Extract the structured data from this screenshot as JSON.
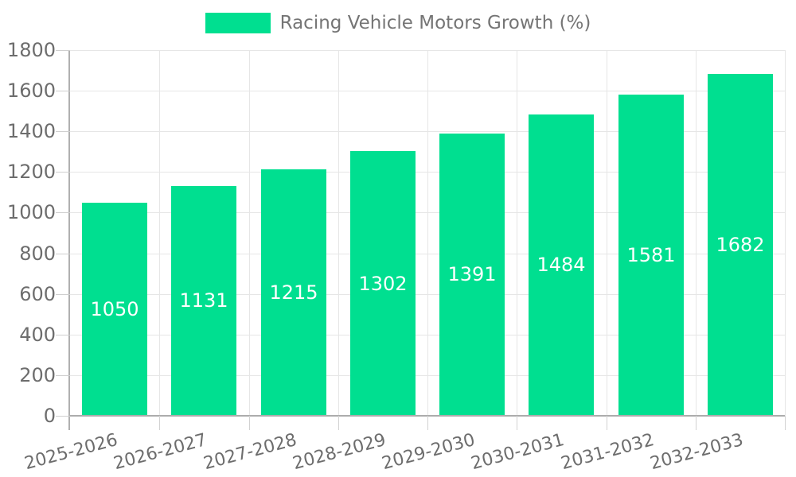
{
  "legend": {
    "label": "Racing Vehicle Motors Growth (%)"
  },
  "chart_data": {
    "type": "bar",
    "title": "Racing Vehicle Motors Growth (%)",
    "categories": [
      "2025-2026",
      "2026-2027",
      "2027-2028",
      "2028-2029",
      "2029-2030",
      "2030-2031",
      "2031-2032",
      "2032-2033"
    ],
    "series": [
      {
        "name": "Racing Vehicle Motors Growth (%)",
        "values": [
          1050,
          1131,
          1215,
          1302,
          1391,
          1484,
          1581,
          1682
        ]
      }
    ],
    "value_labels": [
      "1050",
      "1131",
      "1215",
      "1302",
      "1391",
      "1484",
      "1581",
      "1682"
    ],
    "xlabel": "",
    "ylabel": "",
    "ylim": [
      0,
      1800
    ],
    "ytick_step": 200,
    "ytick_labels": [
      "0",
      "200",
      "400",
      "600",
      "800",
      "1000",
      "1200",
      "1400",
      "1600",
      "1800"
    ],
    "grid": true,
    "legend_position": "top",
    "x_label_rotation_deg": -15,
    "colors": {
      "bar": "#00DF90",
      "value_text": "#ffffff",
      "axis_text": "#6d6d6d",
      "legend_text": "#757575",
      "gridline": "#e6e6e6",
      "axis_line": "#acacac",
      "background": "#ffffff"
    }
  }
}
